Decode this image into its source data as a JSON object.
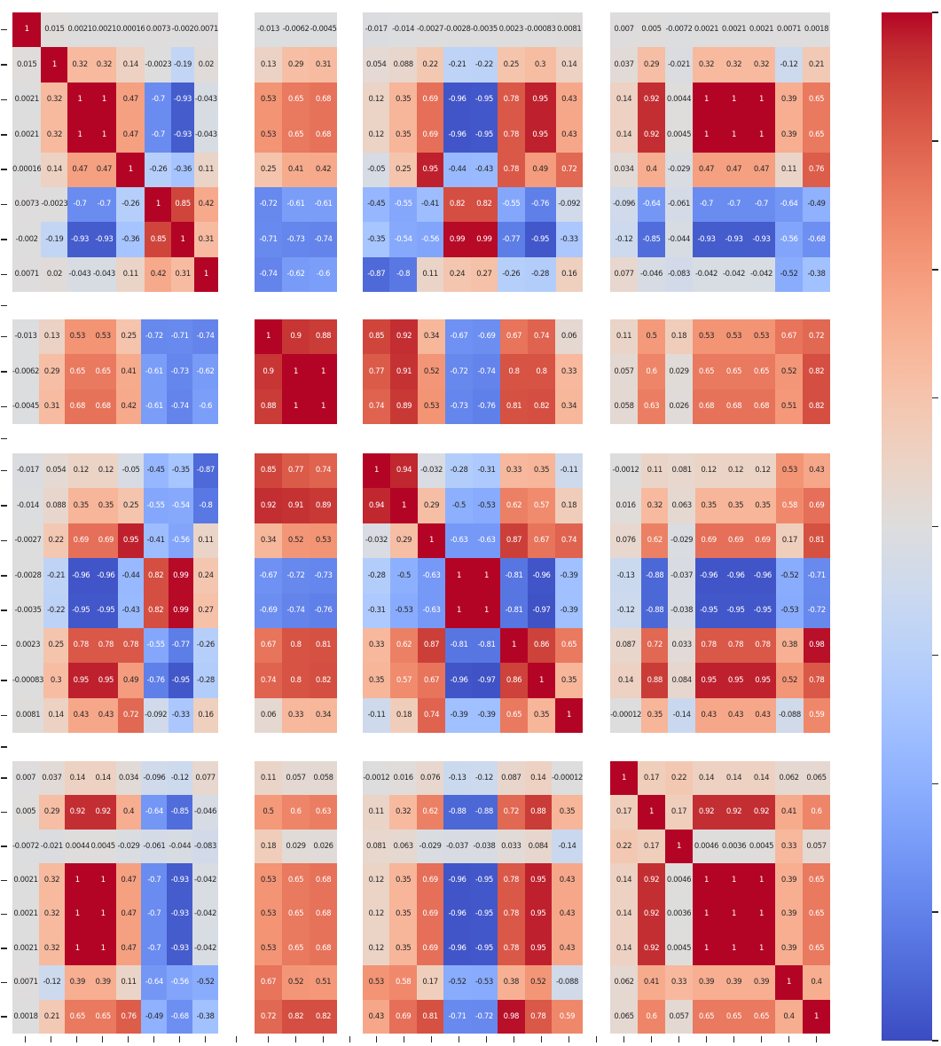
{
  "chart_data": {
    "type": "heatmap",
    "title": "",
    "colormap": "coolwarm",
    "vmin": -1,
    "vmax": 1,
    "annotation_format": ".2g",
    "legend_position": "right-colorbar",
    "grid": false,
    "group_sizes": [
      8,
      3,
      8,
      8
    ],
    "colorbar": {
      "side": "right",
      "tick_count": 9,
      "tick_labels_visible": false
    },
    "colors": {
      "annot_dark": "#262626",
      "annot_light": "#ffffff",
      "background": "#ffffff",
      "tick": "#262626",
      "colormap_rgb": [
        [
          59,
          76,
          192
        ],
        [
          68,
          90,
          204
        ],
        [
          77,
          104,
          215
        ],
        [
          87,
          117,
          225
        ],
        [
          98,
          130,
          234
        ],
        [
          108,
          142,
          241
        ],
        [
          119,
          154,
          247
        ],
        [
          130,
          165,
          251
        ],
        [
          141,
          176,
          254
        ],
        [
          152,
          185,
          255
        ],
        [
          163,
          194,
          255
        ],
        [
          174,
          201,
          253
        ],
        [
          184,
          208,
          249
        ],
        [
          194,
          213,
          244
        ],
        [
          204,
          217,
          238
        ],
        [
          213,
          219,
          230
        ],
        [
          221,
          221,
          221
        ],
        [
          229,
          216,
          209
        ],
        [
          236,
          211,
          197
        ],
        [
          241,
          204,
          185
        ],
        [
          245,
          196,
          173
        ],
        [
          247,
          187,
          160
        ],
        [
          247,
          177,
          148
        ],
        [
          247,
          166,
          135
        ],
        [
          244,
          154,
          123
        ],
        [
          241,
          141,
          111
        ],
        [
          236,
          127,
          99
        ],
        [
          229,
          112,
          88
        ],
        [
          222,
          96,
          77
        ],
        [
          213,
          80,
          66
        ],
        [
          203,
          62,
          56
        ],
        [
          192,
          40,
          47
        ],
        [
          180,
          4,
          38
        ]
      ]
    },
    "matrix": [
      [
        1,
        0.015,
        0.0021,
        0.0021,
        0.00016,
        0.0073,
        -0.002,
        0.0071,
        -0.013,
        -0.0062,
        -0.0045,
        -0.017,
        -0.014,
        -0.0027,
        -0.0028,
        -0.0035,
        0.0023,
        -0.00083,
        0.0081,
        0.007,
        0.005,
        -0.0072,
        0.0021,
        0.0021,
        0.0021,
        0.0071,
        0.0018
      ],
      [
        0.015,
        1,
        0.32,
        0.32,
        0.14,
        -0.0023,
        -0.19,
        0.02,
        0.13,
        0.29,
        0.31,
        0.054,
        0.088,
        0.22,
        -0.21,
        -0.22,
        0.25,
        0.3,
        0.14,
        0.037,
        0.29,
        -0.021,
        0.32,
        0.32,
        0.32,
        -0.12,
        0.21
      ],
      [
        0.0021,
        0.32,
        1,
        1,
        0.47,
        -0.7,
        -0.93,
        -0.043,
        0.53,
        0.65,
        0.68,
        0.12,
        0.35,
        0.69,
        -0.96,
        -0.95,
        0.78,
        0.95,
        0.43,
        0.14,
        0.92,
        0.0044,
        1,
        1,
        1,
        0.39,
        0.65
      ],
      [
        0.0021,
        0.32,
        1,
        1,
        0.47,
        -0.7,
        -0.93,
        -0.043,
        0.53,
        0.65,
        0.68,
        0.12,
        0.35,
        0.69,
        -0.96,
        -0.95,
        0.78,
        0.95,
        0.43,
        0.14,
        0.92,
        0.0045,
        1,
        1,
        1,
        0.39,
        0.65
      ],
      [
        0.00016,
        0.14,
        0.47,
        0.47,
        1,
        -0.26,
        -0.36,
        0.11,
        0.25,
        0.41,
        0.42,
        -0.05,
        0.25,
        0.95,
        -0.44,
        -0.43,
        0.78,
        0.49,
        0.72,
        0.034,
        0.4,
        -0.029,
        0.47,
        0.47,
        0.47,
        0.11,
        0.76
      ],
      [
        0.0073,
        -0.0023,
        -0.7,
        -0.7,
        -0.26,
        1,
        0.85,
        0.42,
        -0.72,
        -0.61,
        -0.61,
        -0.45,
        -0.55,
        -0.41,
        0.82,
        0.82,
        -0.55,
        -0.76,
        -0.092,
        -0.096,
        -0.64,
        -0.061,
        -0.7,
        -0.7,
        -0.7,
        -0.64,
        -0.49
      ],
      [
        -0.002,
        -0.19,
        -0.93,
        -0.93,
        -0.36,
        0.85,
        1,
        0.31,
        -0.71,
        -0.73,
        -0.74,
        -0.35,
        -0.54,
        -0.56,
        0.99,
        0.99,
        -0.77,
        -0.95,
        -0.33,
        -0.12,
        -0.85,
        -0.044,
        -0.93,
        -0.93,
        -0.93,
        -0.56,
        -0.68
      ],
      [
        0.0071,
        0.02,
        -0.043,
        -0.043,
        0.11,
        0.42,
        0.31,
        1,
        -0.74,
        -0.62,
        -0.6,
        -0.87,
        -0.8,
        0.11,
        0.24,
        0.27,
        -0.26,
        -0.28,
        0.16,
        0.077,
        -0.046,
        -0.083,
        -0.042,
        -0.042,
        -0.042,
        -0.52,
        -0.38
      ],
      [
        -0.013,
        0.13,
        0.53,
        0.53,
        0.25,
        -0.72,
        -0.71,
        -0.74,
        1,
        0.9,
        0.88,
        0.85,
        0.92,
        0.34,
        -0.67,
        -0.69,
        0.67,
        0.74,
        0.06,
        0.11,
        0.5,
        0.18,
        0.53,
        0.53,
        0.53,
        0.67,
        0.72
      ],
      [
        -0.0062,
        0.29,
        0.65,
        0.65,
        0.41,
        -0.61,
        -0.73,
        -0.62,
        0.9,
        1,
        1,
        0.77,
        0.91,
        0.52,
        -0.72,
        -0.74,
        0.8,
        0.8,
        0.33,
        0.057,
        0.6,
        0.029,
        0.65,
        0.65,
        0.65,
        0.52,
        0.82
      ],
      [
        -0.0045,
        0.31,
        0.68,
        0.68,
        0.42,
        -0.61,
        -0.74,
        -0.6,
        0.88,
        1,
        1,
        0.74,
        0.89,
        0.53,
        -0.73,
        -0.76,
        0.81,
        0.82,
        0.34,
        0.058,
        0.63,
        0.026,
        0.68,
        0.68,
        0.68,
        0.51,
        0.82
      ],
      [
        -0.017,
        0.054,
        0.12,
        0.12,
        -0.05,
        -0.45,
        -0.35,
        -0.87,
        0.85,
        0.77,
        0.74,
        1,
        0.94,
        -0.032,
        -0.28,
        -0.31,
        0.33,
        0.35,
        -0.11,
        -0.0012,
        0.11,
        0.081,
        0.12,
        0.12,
        0.12,
        0.53,
        0.43
      ],
      [
        -0.014,
        0.088,
        0.35,
        0.35,
        0.25,
        -0.55,
        -0.54,
        -0.8,
        0.92,
        0.91,
        0.89,
        0.94,
        1,
        0.29,
        -0.5,
        -0.53,
        0.62,
        0.57,
        0.18,
        0.016,
        0.32,
        0.063,
        0.35,
        0.35,
        0.35,
        0.58,
        0.69
      ],
      [
        -0.0027,
        0.22,
        0.69,
        0.69,
        0.95,
        -0.41,
        -0.56,
        0.11,
        0.34,
        0.52,
        0.53,
        -0.032,
        0.29,
        1,
        -0.63,
        -0.63,
        0.87,
        0.67,
        0.74,
        0.076,
        0.62,
        -0.029,
        0.69,
        0.69,
        0.69,
        0.17,
        0.81
      ],
      [
        -0.0028,
        -0.21,
        -0.96,
        -0.96,
        -0.44,
        0.82,
        0.99,
        0.24,
        -0.67,
        -0.72,
        -0.73,
        -0.28,
        -0.5,
        -0.63,
        1,
        1,
        -0.81,
        -0.96,
        -0.39,
        -0.13,
        -0.88,
        -0.037,
        -0.96,
        -0.96,
        -0.96,
        -0.52,
        -0.71
      ],
      [
        -0.0035,
        -0.22,
        -0.95,
        -0.95,
        -0.43,
        0.82,
        0.99,
        0.27,
        -0.69,
        -0.74,
        -0.76,
        -0.31,
        -0.53,
        -0.63,
        1,
        1,
        -0.81,
        -0.97,
        -0.39,
        -0.12,
        -0.88,
        -0.038,
        -0.95,
        -0.95,
        -0.95,
        -0.53,
        -0.72
      ],
      [
        0.0023,
        0.25,
        0.78,
        0.78,
        0.78,
        -0.55,
        -0.77,
        -0.26,
        0.67,
        0.8,
        0.81,
        0.33,
        0.62,
        0.87,
        -0.81,
        -0.81,
        1,
        0.86,
        0.65,
        0.087,
        0.72,
        0.033,
        0.78,
        0.78,
        0.78,
        0.38,
        0.98
      ],
      [
        -0.00083,
        0.3,
        0.95,
        0.95,
        0.49,
        -0.76,
        -0.95,
        -0.28,
        0.74,
        0.8,
        0.82,
        0.35,
        0.57,
        0.67,
        -0.96,
        -0.97,
        0.86,
        1,
        0.35,
        0.14,
        0.88,
        0.084,
        0.95,
        0.95,
        0.95,
        0.52,
        0.78
      ],
      [
        0.0081,
        0.14,
        0.43,
        0.43,
        0.72,
        -0.092,
        -0.33,
        0.16,
        0.06,
        0.33,
        0.34,
        -0.11,
        0.18,
        0.74,
        -0.39,
        -0.39,
        0.65,
        0.35,
        1,
        -0.00012,
        0.35,
        -0.14,
        0.43,
        0.43,
        0.43,
        -0.088,
        0.59
      ],
      [
        0.007,
        0.037,
        0.14,
        0.14,
        0.034,
        -0.096,
        -0.12,
        0.077,
        0.11,
        0.057,
        0.058,
        -0.0012,
        0.016,
        0.076,
        -0.13,
        -0.12,
        0.087,
        0.14,
        -0.00012,
        1,
        0.17,
        0.22,
        0.14,
        0.14,
        0.14,
        0.062,
        0.065
      ],
      [
        0.005,
        0.29,
        0.92,
        0.92,
        0.4,
        -0.64,
        -0.85,
        -0.046,
        0.5,
        0.6,
        0.63,
        0.11,
        0.32,
        0.62,
        -0.88,
        -0.88,
        0.72,
        0.88,
        0.35,
        0.17,
        1,
        0.17,
        0.92,
        0.92,
        0.92,
        0.41,
        0.6
      ],
      [
        -0.0072,
        -0.021,
        0.0044,
        0.0045,
        -0.029,
        -0.061,
        -0.044,
        -0.083,
        0.18,
        0.029,
        0.026,
        0.081,
        0.063,
        -0.029,
        -0.037,
        -0.038,
        0.033,
        0.084,
        -0.14,
        0.22,
        0.17,
        1,
        0.0046,
        0.0036,
        0.0045,
        0.33,
        0.057
      ],
      [
        0.0021,
        0.32,
        1,
        1,
        0.47,
        -0.7,
        -0.93,
        -0.042,
        0.53,
        0.65,
        0.68,
        0.12,
        0.35,
        0.69,
        -0.96,
        -0.95,
        0.78,
        0.95,
        0.43,
        0.14,
        0.92,
        0.0046,
        1,
        1,
        1,
        0.39,
        0.65
      ],
      [
        0.0021,
        0.32,
        1,
        1,
        0.47,
        -0.7,
        -0.93,
        -0.042,
        0.53,
        0.65,
        0.68,
        0.12,
        0.35,
        0.69,
        -0.96,
        -0.95,
        0.78,
        0.95,
        0.43,
        0.14,
        0.92,
        0.0036,
        1,
        1,
        1,
        0.39,
        0.65
      ],
      [
        0.0021,
        0.32,
        1,
        1,
        0.47,
        -0.7,
        -0.93,
        -0.042,
        0.53,
        0.65,
        0.68,
        0.12,
        0.35,
        0.69,
        -0.96,
        -0.95,
        0.78,
        0.95,
        0.43,
        0.14,
        0.92,
        0.0045,
        1,
        1,
        1,
        0.39,
        0.65
      ],
      [
        0.0071,
        -0.12,
        0.39,
        0.39,
        0.11,
        -0.64,
        -0.56,
        -0.52,
        0.67,
        0.52,
        0.51,
        0.53,
        0.58,
        0.17,
        -0.52,
        -0.53,
        0.38,
        0.52,
        -0.088,
        0.062,
        0.41,
        0.33,
        0.39,
        0.39,
        0.39,
        1,
        0.4
      ],
      [
        0.0018,
        0.21,
        0.65,
        0.65,
        0.76,
        -0.49,
        -0.68,
        -0.38,
        0.72,
        0.82,
        0.82,
        0.43,
        0.69,
        0.81,
        -0.71,
        -0.72,
        0.98,
        0.78,
        0.59,
        0.065,
        0.6,
        0.057,
        0.65,
        0.65,
        0.65,
        0.4,
        1
      ]
    ]
  }
}
